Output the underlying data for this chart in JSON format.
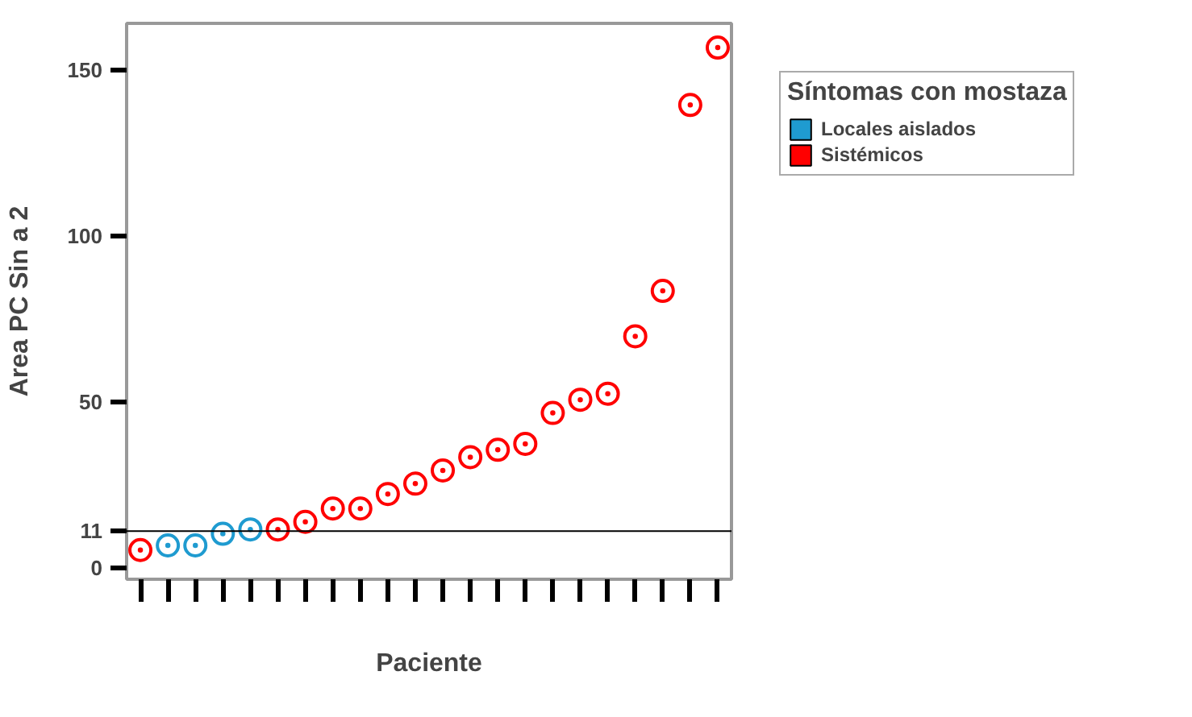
{
  "chart_data": {
    "type": "scatter",
    "xlabel": "Paciente",
    "ylabel": "Area PC Sin a 2",
    "legend_title": "Síntomas con mostaza",
    "categories": [
      null,
      null,
      null,
      null,
      null,
      null,
      null,
      null,
      null,
      null,
      null,
      null,
      null,
      null,
      null,
      null,
      null,
      null,
      null,
      null,
      null,
      null
    ],
    "series": [
      {
        "name": "Locales aislados",
        "color": "#1f9bd0",
        "values": [
          null,
          6.7,
          6.7,
          10.2,
          11.5,
          null,
          null,
          null,
          null,
          null,
          null,
          null,
          null,
          null,
          null,
          null,
          null,
          null,
          null,
          null,
          null,
          null
        ]
      },
      {
        "name": "Sistémicos",
        "color": "#ff0000",
        "values": [
          5.3,
          null,
          null,
          null,
          null,
          11.5,
          13.8,
          17.8,
          17.8,
          22.2,
          25.3,
          29.3,
          33.3,
          35.5,
          37.3,
          46.6,
          50.6,
          52.4,
          69.7,
          83.4,
          139.4,
          156.7
        ]
      }
    ],
    "ylim": [
      -3.5,
      164
    ],
    "yticks": [
      0,
      11,
      50,
      100,
      150
    ],
    "ref_lines": [
      {
        "axis": "y",
        "value": 11
      }
    ],
    "marker": "circle",
    "grid": false,
    "legend": "top right",
    "tick_labels": "y"
  }
}
